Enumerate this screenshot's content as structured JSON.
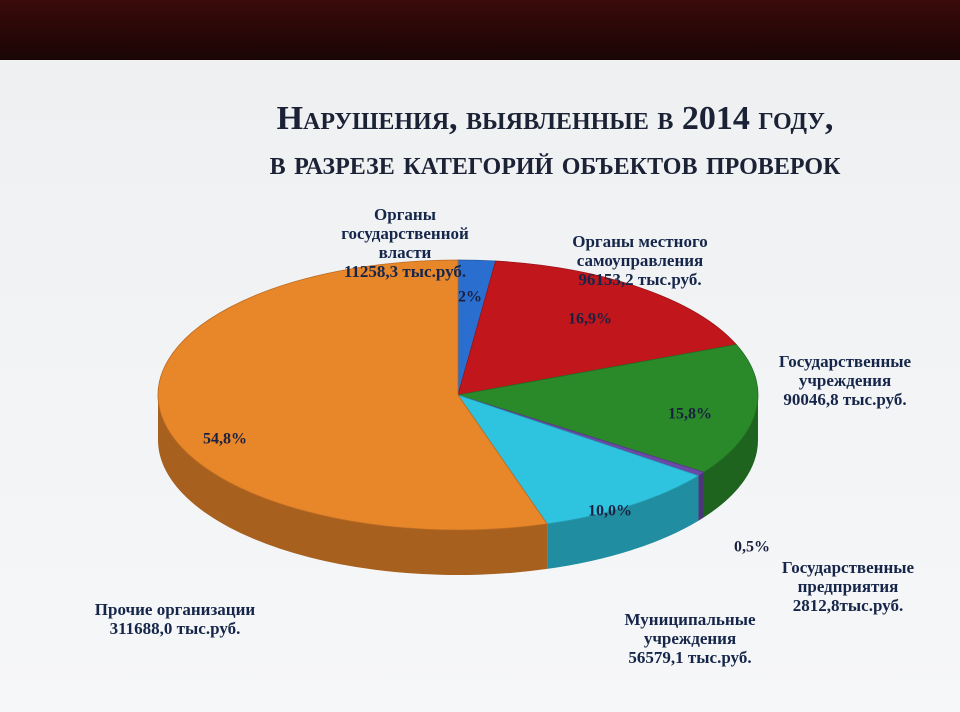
{
  "chart_data": {
    "type": "pie",
    "title": [
      "Нарушения, выявленные в 2014 году,",
      "в разрезе категорий объектов проверок"
    ],
    "categories": [
      "Органы государственной власти",
      "Органы местного самоуправления",
      "Государственные учреждения",
      "Государственные предприятия",
      "Муниципальные учреждения",
      "Прочие организации"
    ],
    "amount_labels": [
      "11258,3 тыс.руб.",
      "96153,2 тыс.руб.",
      "90046,8 тыс.руб.",
      "2812,8тыс.руб.",
      "56579,1 тыс.руб.",
      "311688,0 тыс.руб."
    ],
    "values": [
      2,
      16.9,
      15.8,
      0.5,
      10.0,
      54.8
    ],
    "value_labels": [
      "2%",
      "16,9%",
      "15,8%",
      "0,5%",
      "10,0%",
      "54,8%"
    ],
    "colors": [
      "#2a6fd0",
      "#c0161c",
      "#2a8a2a",
      "#6a4aa8",
      "#2ec4e0",
      "#e8862a"
    ],
    "3d": true
  }
}
